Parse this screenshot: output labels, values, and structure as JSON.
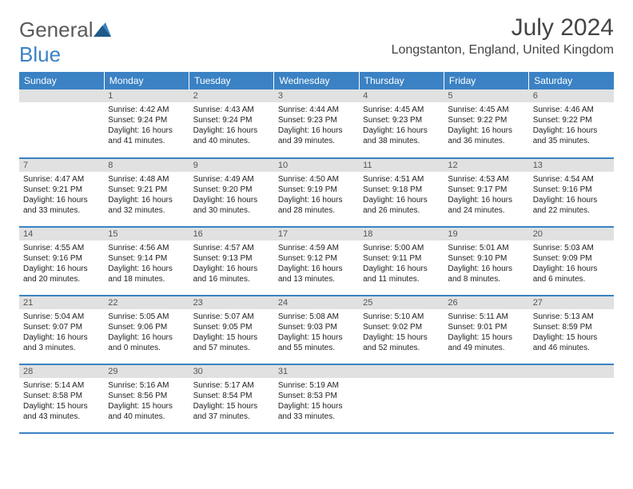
{
  "logo": {
    "text1": "General",
    "text2": "Blue"
  },
  "title": "July 2024",
  "location": "Longstanton, England, United Kingdom",
  "daysOfWeek": [
    "Sunday",
    "Monday",
    "Tuesday",
    "Wednesday",
    "Thursday",
    "Friday",
    "Saturday"
  ],
  "colors": {
    "headerBg": "#3b82c4",
    "headerText": "#ffffff",
    "dayNumBg": "#e1e1e1",
    "borderBottom": "#3b82c4"
  },
  "weeks": [
    [
      null,
      {
        "n": "1",
        "sunrise": "Sunrise: 4:42 AM",
        "sunset": "Sunset: 9:24 PM",
        "daylight1": "Daylight: 16 hours",
        "daylight2": "and 41 minutes."
      },
      {
        "n": "2",
        "sunrise": "Sunrise: 4:43 AM",
        "sunset": "Sunset: 9:24 PM",
        "daylight1": "Daylight: 16 hours",
        "daylight2": "and 40 minutes."
      },
      {
        "n": "3",
        "sunrise": "Sunrise: 4:44 AM",
        "sunset": "Sunset: 9:23 PM",
        "daylight1": "Daylight: 16 hours",
        "daylight2": "and 39 minutes."
      },
      {
        "n": "4",
        "sunrise": "Sunrise: 4:45 AM",
        "sunset": "Sunset: 9:23 PM",
        "daylight1": "Daylight: 16 hours",
        "daylight2": "and 38 minutes."
      },
      {
        "n": "5",
        "sunrise": "Sunrise: 4:45 AM",
        "sunset": "Sunset: 9:22 PM",
        "daylight1": "Daylight: 16 hours",
        "daylight2": "and 36 minutes."
      },
      {
        "n": "6",
        "sunrise": "Sunrise: 4:46 AM",
        "sunset": "Sunset: 9:22 PM",
        "daylight1": "Daylight: 16 hours",
        "daylight2": "and 35 minutes."
      }
    ],
    [
      {
        "n": "7",
        "sunrise": "Sunrise: 4:47 AM",
        "sunset": "Sunset: 9:21 PM",
        "daylight1": "Daylight: 16 hours",
        "daylight2": "and 33 minutes."
      },
      {
        "n": "8",
        "sunrise": "Sunrise: 4:48 AM",
        "sunset": "Sunset: 9:21 PM",
        "daylight1": "Daylight: 16 hours",
        "daylight2": "and 32 minutes."
      },
      {
        "n": "9",
        "sunrise": "Sunrise: 4:49 AM",
        "sunset": "Sunset: 9:20 PM",
        "daylight1": "Daylight: 16 hours",
        "daylight2": "and 30 minutes."
      },
      {
        "n": "10",
        "sunrise": "Sunrise: 4:50 AM",
        "sunset": "Sunset: 9:19 PM",
        "daylight1": "Daylight: 16 hours",
        "daylight2": "and 28 minutes."
      },
      {
        "n": "11",
        "sunrise": "Sunrise: 4:51 AM",
        "sunset": "Sunset: 9:18 PM",
        "daylight1": "Daylight: 16 hours",
        "daylight2": "and 26 minutes."
      },
      {
        "n": "12",
        "sunrise": "Sunrise: 4:53 AM",
        "sunset": "Sunset: 9:17 PM",
        "daylight1": "Daylight: 16 hours",
        "daylight2": "and 24 minutes."
      },
      {
        "n": "13",
        "sunrise": "Sunrise: 4:54 AM",
        "sunset": "Sunset: 9:16 PM",
        "daylight1": "Daylight: 16 hours",
        "daylight2": "and 22 minutes."
      }
    ],
    [
      {
        "n": "14",
        "sunrise": "Sunrise: 4:55 AM",
        "sunset": "Sunset: 9:16 PM",
        "daylight1": "Daylight: 16 hours",
        "daylight2": "and 20 minutes."
      },
      {
        "n": "15",
        "sunrise": "Sunrise: 4:56 AM",
        "sunset": "Sunset: 9:14 PM",
        "daylight1": "Daylight: 16 hours",
        "daylight2": "and 18 minutes."
      },
      {
        "n": "16",
        "sunrise": "Sunrise: 4:57 AM",
        "sunset": "Sunset: 9:13 PM",
        "daylight1": "Daylight: 16 hours",
        "daylight2": "and 16 minutes."
      },
      {
        "n": "17",
        "sunrise": "Sunrise: 4:59 AM",
        "sunset": "Sunset: 9:12 PM",
        "daylight1": "Daylight: 16 hours",
        "daylight2": "and 13 minutes."
      },
      {
        "n": "18",
        "sunrise": "Sunrise: 5:00 AM",
        "sunset": "Sunset: 9:11 PM",
        "daylight1": "Daylight: 16 hours",
        "daylight2": "and 11 minutes."
      },
      {
        "n": "19",
        "sunrise": "Sunrise: 5:01 AM",
        "sunset": "Sunset: 9:10 PM",
        "daylight1": "Daylight: 16 hours",
        "daylight2": "and 8 minutes."
      },
      {
        "n": "20",
        "sunrise": "Sunrise: 5:03 AM",
        "sunset": "Sunset: 9:09 PM",
        "daylight1": "Daylight: 16 hours",
        "daylight2": "and 6 minutes."
      }
    ],
    [
      {
        "n": "21",
        "sunrise": "Sunrise: 5:04 AM",
        "sunset": "Sunset: 9:07 PM",
        "daylight1": "Daylight: 16 hours",
        "daylight2": "and 3 minutes."
      },
      {
        "n": "22",
        "sunrise": "Sunrise: 5:05 AM",
        "sunset": "Sunset: 9:06 PM",
        "daylight1": "Daylight: 16 hours",
        "daylight2": "and 0 minutes."
      },
      {
        "n": "23",
        "sunrise": "Sunrise: 5:07 AM",
        "sunset": "Sunset: 9:05 PM",
        "daylight1": "Daylight: 15 hours",
        "daylight2": "and 57 minutes."
      },
      {
        "n": "24",
        "sunrise": "Sunrise: 5:08 AM",
        "sunset": "Sunset: 9:03 PM",
        "daylight1": "Daylight: 15 hours",
        "daylight2": "and 55 minutes."
      },
      {
        "n": "25",
        "sunrise": "Sunrise: 5:10 AM",
        "sunset": "Sunset: 9:02 PM",
        "daylight1": "Daylight: 15 hours",
        "daylight2": "and 52 minutes."
      },
      {
        "n": "26",
        "sunrise": "Sunrise: 5:11 AM",
        "sunset": "Sunset: 9:01 PM",
        "daylight1": "Daylight: 15 hours",
        "daylight2": "and 49 minutes."
      },
      {
        "n": "27",
        "sunrise": "Sunrise: 5:13 AM",
        "sunset": "Sunset: 8:59 PM",
        "daylight1": "Daylight: 15 hours",
        "daylight2": "and 46 minutes."
      }
    ],
    [
      {
        "n": "28",
        "sunrise": "Sunrise: 5:14 AM",
        "sunset": "Sunset: 8:58 PM",
        "daylight1": "Daylight: 15 hours",
        "daylight2": "and 43 minutes."
      },
      {
        "n": "29",
        "sunrise": "Sunrise: 5:16 AM",
        "sunset": "Sunset: 8:56 PM",
        "daylight1": "Daylight: 15 hours",
        "daylight2": "and 40 minutes."
      },
      {
        "n": "30",
        "sunrise": "Sunrise: 5:17 AM",
        "sunset": "Sunset: 8:54 PM",
        "daylight1": "Daylight: 15 hours",
        "daylight2": "and 37 minutes."
      },
      {
        "n": "31",
        "sunrise": "Sunrise: 5:19 AM",
        "sunset": "Sunset: 8:53 PM",
        "daylight1": "Daylight: 15 hours",
        "daylight2": "and 33 minutes."
      },
      null,
      null,
      null
    ]
  ]
}
